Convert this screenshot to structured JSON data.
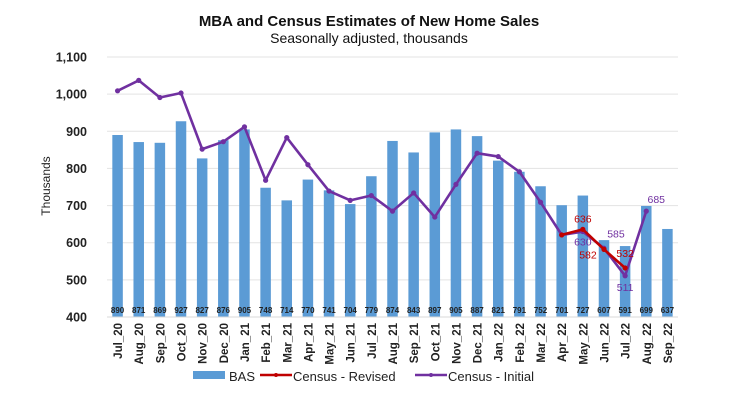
{
  "chart_data": {
    "type": "bar",
    "title": "MBA and Census Estimates of New Home Sales",
    "subtitle": "Seasonally adjusted, thousands",
    "xlabel": "",
    "ylabel": "Thousands",
    "ylim": [
      400,
      1100
    ],
    "yticks": [
      400,
      500,
      600,
      700,
      800,
      900,
      1000,
      1100
    ],
    "ytick_labels": [
      "400",
      "500",
      "600",
      "700",
      "800",
      "900",
      "1,000",
      "1,100"
    ],
    "grid": true,
    "legend": "bottom",
    "categories": [
      "Jul_20",
      "Aug_20",
      "Sep_20",
      "Oct_20",
      "Nov_20",
      "Dec_20",
      "Jan_21",
      "Feb_21",
      "Mar_21",
      "Apr_21",
      "May_21",
      "Jun_21",
      "Jul_21",
      "Aug_21",
      "Sep_21",
      "Oct_21",
      "Nov_21",
      "Dec_21",
      "Jan_22",
      "Feb_22",
      "Mar_22",
      "Apr_22",
      "May_22",
      "Jun_22",
      "Jul_22",
      "Aug_22",
      "Sep_22"
    ],
    "series": [
      {
        "name": "BAS",
        "type": "bar",
        "color": "#5b9bd5",
        "values": [
          890,
          871,
          869,
          927,
          827,
          876,
          905,
          748,
          714,
          770,
          741,
          704,
          779,
          874,
          843,
          897,
          905,
          887,
          821,
          791,
          752,
          701,
          727,
          607,
          591,
          699,
          637
        ],
        "show_labels": true
      },
      {
        "name": "Census - Revised",
        "type": "line",
        "color": "#c00000",
        "values": [
          null,
          null,
          null,
          null,
          null,
          null,
          null,
          null,
          null,
          null,
          null,
          null,
          null,
          null,
          null,
          null,
          null,
          null,
          null,
          null,
          null,
          621,
          636,
          582,
          532,
          null,
          null
        ],
        "labels": [
          {
            "category": "May_22",
            "text": "636"
          },
          {
            "category": "Jun_22",
            "text": "582"
          },
          {
            "category": "Jul_22",
            "text": "532"
          }
        ]
      },
      {
        "name": "Census - Initial",
        "type": "line",
        "color": "#7030a0",
        "values": [
          1009,
          1037,
          991,
          1003,
          852,
          872,
          912,
          768,
          883,
          810,
          739,
          714,
          727,
          685,
          734,
          669,
          757,
          841,
          832,
          791,
          709,
          621,
          630,
          585,
          511,
          685,
          null
        ],
        "labels": [
          {
            "category": "May_22",
            "text": "630"
          },
          {
            "category": "Jun_22",
            "text": "585"
          },
          {
            "category": "Jul_22",
            "text": "511"
          },
          {
            "category": "Aug_22",
            "text": "685"
          }
        ]
      }
    ]
  }
}
